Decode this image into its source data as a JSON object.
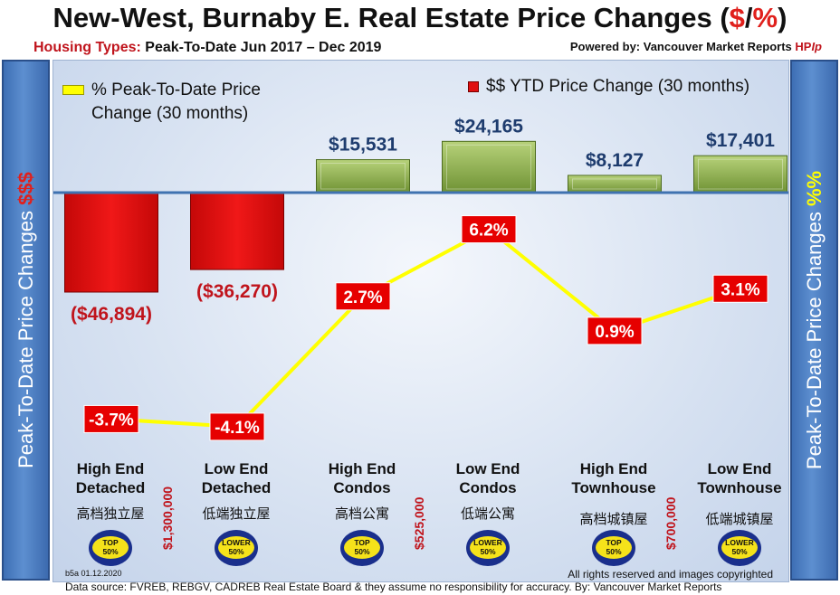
{
  "header": {
    "title_part1": "New-West, Burnaby E. Real Estate Price Changes (",
    "title_dollar": "$",
    "title_slash": "/",
    "title_pct": "%",
    "title_close": ")",
    "subtitle_label": "Housing Types:",
    "subtitle_text": " Peak-To-Date Jun 2017 – Dec 2019",
    "powered_prefix": "Powered by: Vancouver Market Reports ",
    "powered_hp": "HP",
    "powered_ip": "Ip"
  },
  "sidebars": {
    "left_text": "Peak-To-Date Price Changes ",
    "left_accent": "$$$",
    "right_text": "Peak-To-Date  Price  Changes  ",
    "right_accent": "%%"
  },
  "legend": {
    "line_label_1": "% Peak-To-Date Price",
    "line_label_2": "Change (30 months)",
    "bar_label": "$$ YTD Price Change (30 months)"
  },
  "colors": {
    "negative_bar": "#e01010",
    "positive_bar": "#8aae44",
    "line": "#ffff00",
    "label_box": "#e60000",
    "baseline": "#3f72b0"
  },
  "chart_data": {
    "type": "bar",
    "categories": [
      "High End Detached",
      "Low End Detached",
      "High End Condos",
      "Low End Condos",
      "High End Townhouse",
      "Low End Townhouse"
    ],
    "series": [
      {
        "name": "$$ YTD Price Change (30 months)",
        "type": "bar",
        "values": [
          -46894,
          -36270,
          15531,
          24165,
          8127,
          17401
        ],
        "labels": [
          "($46,894)",
          "($36,270)",
          "$15,531",
          "$24,165",
          "$8,127",
          "$17,401"
        ]
      },
      {
        "name": "% Peak-To-Date Price Change (30 months)",
        "type": "line",
        "values": [
          -3.7,
          -4.1,
          2.7,
          6.2,
          0.9,
          3.1
        ],
        "labels": [
          "-3.7%",
          "-4.1%",
          "2.7%",
          "6.2%",
          "0.9%",
          "3.1%"
        ]
      }
    ]
  },
  "categories": [
    {
      "line1": "High End",
      "line2": "Detached",
      "cn": "高档独立屋",
      "badge": [
        "TOP",
        "50%"
      ],
      "price": "$1,300,000"
    },
    {
      "line1": "Low End",
      "line2": "Detached",
      "cn": "低端独立屋",
      "badge": [
        "LOWER",
        "50%"
      ],
      "price": ""
    },
    {
      "line1": "High End",
      "line2": "Condos",
      "cn": "高档公寓",
      "badge": [
        "TOP",
        "50%"
      ],
      "price": "$525,000"
    },
    {
      "line1": "Low End",
      "line2": "Condos",
      "cn": "低端公寓",
      "badge": [
        "LOWER",
        "50%"
      ],
      "price": ""
    },
    {
      "line1": "High End",
      "line2": "Townhouse",
      "cn": "高档城镇屋",
      "badge": [
        "TOP",
        "50%"
      ],
      "price": "$700,000"
    },
    {
      "line1": "Low End",
      "line2": "Townhouse",
      "cn": "低端城镇屋",
      "badge": [
        "LOWER",
        "50%"
      ],
      "price": ""
    }
  ],
  "footer": {
    "code": "b5a 01.12.2020",
    "rights": "All rights reserved and  images copyrighted",
    "data_source": "Data source: FVREB, REBGV, CADREB Real Estate Board & they assume no responsibility for accuracy. By: Vancouver Market Reports"
  }
}
